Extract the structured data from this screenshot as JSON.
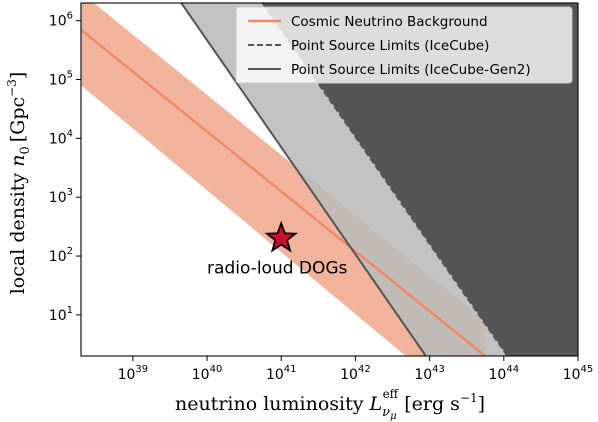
{
  "chart_data": {
    "type": "line",
    "x_scale": "log",
    "y_scale": "log",
    "xlim": [
      2e+38,
      1e+45
    ],
    "ylim": [
      2,
      2000000.0
    ],
    "xlabel_text": "neutrino luminosity",
    "xlabel_symbol": "L",
    "xlabel_sub": "ν",
    "xlabel_subsub": "μ",
    "xlabel_sup": "eff",
    "xlabel_unit": "[erg s",
    "xlabel_unit_sup": "−1",
    "xlabel_unit_close": "]",
    "ylabel_text": "local density",
    "ylabel_symbol": "n",
    "ylabel_sub": "0",
    "ylabel_unit": "[Gpc",
    "ylabel_unit_sup": "−3",
    "ylabel_unit_close": "]",
    "x_ticks": [
      {
        "value": 1e+39,
        "base": "10",
        "exp": "39"
      },
      {
        "value": 1e+40,
        "base": "10",
        "exp": "40"
      },
      {
        "value": 1e+41,
        "base": "10",
        "exp": "41"
      },
      {
        "value": 1e+42,
        "base": "10",
        "exp": "42"
      },
      {
        "value": 1e+43,
        "base": "10",
        "exp": "43"
      },
      {
        "value": 1e+44,
        "base": "10",
        "exp": "44"
      },
      {
        "value": 1e+45,
        "base": "10",
        "exp": "45"
      }
    ],
    "y_ticks": [
      {
        "value": 10.0,
        "base": "10",
        "exp": "1"
      },
      {
        "value": 100.0,
        "base": "10",
        "exp": "2"
      },
      {
        "value": 1000.0,
        "base": "10",
        "exp": "3"
      },
      {
        "value": 10000.0,
        "base": "10",
        "exp": "4"
      },
      {
        "value": 100000.0,
        "base": "10",
        "exp": "5"
      },
      {
        "value": 1000000.0,
        "base": "10",
        "exp": "6"
      }
    ],
    "series": [
      {
        "name": "Cosmic Neutrino Background",
        "style": "line",
        "color": "#f08a66",
        "band_color": "#f2b39d",
        "x": [
          2e+38,
          5.6e+43
        ],
        "y": [
          700000.0,
          2
        ],
        "band_upper_y": [
          3000000.0,
          8
        ],
        "band_lower_y": [
          80000.0,
          0.15
        ]
      },
      {
        "name": "Point Source Limits (IceCube)",
        "style": "dashed",
        "color": "#555555",
        "fill_color": "#555555",
        "x": [
          5.6e+40,
          1.12e+44
        ],
        "y": [
          2000000.0,
          2
        ]
      },
      {
        "name": "Point Source Limits (IceCube-Gen2)",
        "style": "solid",
        "color": "#555555",
        "fill_color": "#bbbbbb",
        "x": [
          4.5e+39,
          8.9e+42
        ],
        "y": [
          2000000.0,
          2
        ]
      }
    ],
    "markers": [
      {
        "label": "radio-loud DOGs",
        "x": 1e+41,
        "y": 200,
        "shape": "star",
        "color": "#c8102e"
      }
    ],
    "legend_position": "top-right",
    "grid": false
  }
}
